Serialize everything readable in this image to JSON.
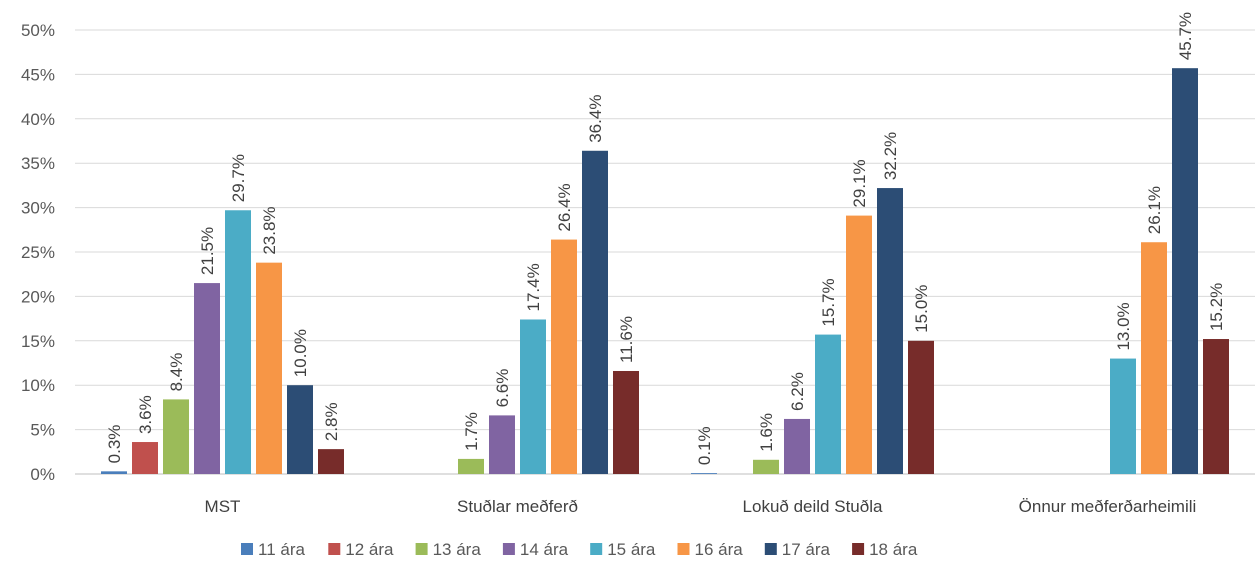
{
  "chart_data": {
    "type": "bar",
    "title": "",
    "xlabel": "",
    "ylabel": "",
    "ylim": [
      0,
      50
    ],
    "y_ticks": [
      "0%",
      "5%",
      "10%",
      "15%",
      "20%",
      "25%",
      "30%",
      "35%",
      "40%",
      "45%",
      "50%"
    ],
    "grid": true,
    "legend_position": "bottom",
    "categories": [
      "MST",
      "Stuðlar meðferð",
      "Lokuð deild Stuðla",
      "Önnur meðferðarheimili"
    ],
    "series": [
      {
        "name": "11 ára",
        "color": "#4a7ebb",
        "values": [
          0.3,
          null,
          0.1,
          null
        ],
        "labels": [
          "0.3%",
          "",
          "0.1%",
          ""
        ]
      },
      {
        "name": "12 ára",
        "color": "#c0504d",
        "values": [
          3.6,
          null,
          null,
          null
        ],
        "labels": [
          "3.6%",
          "",
          "",
          ""
        ]
      },
      {
        "name": "13 ára",
        "color": "#9bbb59",
        "values": [
          8.4,
          1.7,
          1.6,
          null
        ],
        "labels": [
          "8.4%",
          "1.7%",
          "1.6%",
          ""
        ]
      },
      {
        "name": "14 ára",
        "color": "#8064a2",
        "values": [
          21.5,
          6.6,
          6.2,
          null
        ],
        "labels": [
          "21.5%",
          "6.6%",
          "6.2%",
          ""
        ]
      },
      {
        "name": "15 ára",
        "color": "#4bacc6",
        "values": [
          29.7,
          17.4,
          15.7,
          13.0
        ],
        "labels": [
          "29.7%",
          "17.4%",
          "15.7%",
          "13.0%"
        ]
      },
      {
        "name": "16 ára",
        "color": "#f79646",
        "values": [
          23.8,
          26.4,
          29.1,
          26.1
        ],
        "labels": [
          "23.8%",
          "26.4%",
          "29.1%",
          "26.1%"
        ]
      },
      {
        "name": "17 ára",
        "color": "#2c4d75",
        "values": [
          10.0,
          36.4,
          32.2,
          45.7
        ],
        "labels": [
          "10.0%",
          "36.4%",
          "32.2%",
          "45.7%"
        ]
      },
      {
        "name": "18 ára",
        "color": "#772c2a",
        "values": [
          2.8,
          11.6,
          15.0,
          15.2
        ],
        "labels": [
          "2.8%",
          "11.6%",
          "15.0%",
          "15.2%"
        ]
      }
    ]
  }
}
